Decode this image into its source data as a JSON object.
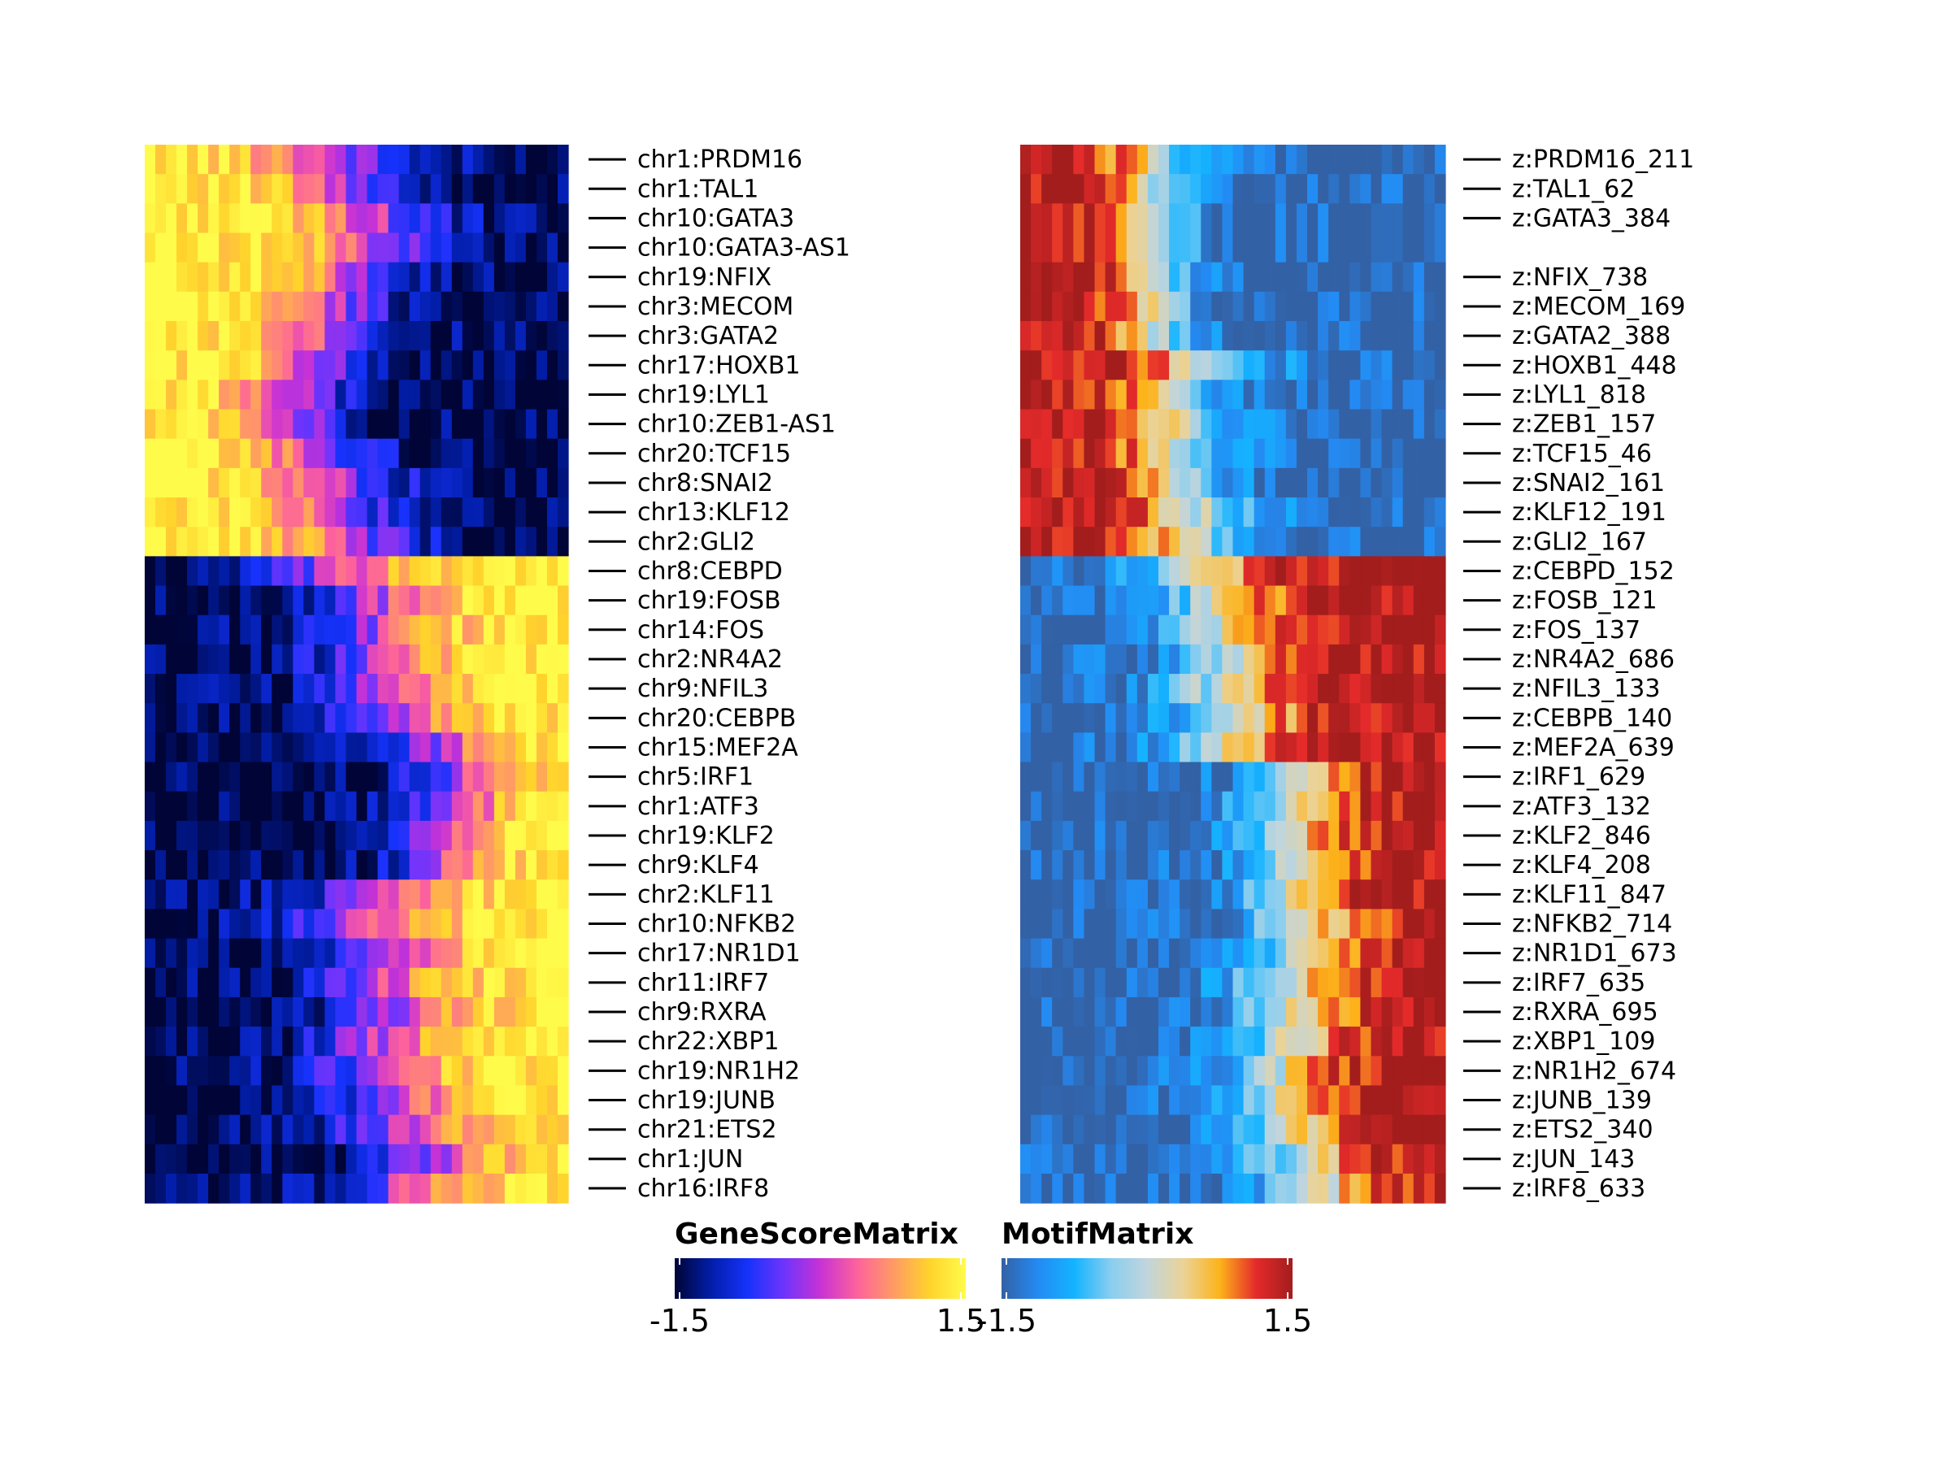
{
  "chart_data": [
    {
      "type": "heatmap",
      "name": "GeneScoreMatrix",
      "legend_title": "GeneScoreMatrix",
      "color_range": [
        -1.5,
        1.5
      ],
      "tick_labels": [
        "-1.5",
        "1.5"
      ],
      "colors": [
        "#000436",
        "#021ea9",
        "#1632fb",
        "#6e34fc",
        "#c732d5",
        "#fd619d",
        "#ff9965",
        "#ffd32b",
        "#fffb4a"
      ],
      "rows": [
        "chr1:PRDM16",
        "chr1:TAL1",
        "chr10:GATA3",
        "chr10:GATA3-AS1",
        "chr19:NFIX",
        "chr3:MECOM",
        "chr3:GATA2",
        "chr17:HOXB1",
        "chr19:LYL1",
        "chr10:ZEB1-AS1",
        "chr20:TCF15",
        "chr8:SNAI2",
        "chr13:KLF12",
        "chr2:GLI2",
        "chr8:CEBPD",
        "chr19:FOSB",
        "chr14:FOS",
        "chr2:NR4A2",
        "chr9:NFIL3",
        "chr20:CEBPB",
        "chr15:MEF2A",
        "chr5:IRF1",
        "chr1:ATF3",
        "chr19:KLF2",
        "chr9:KLF4",
        "chr2:KLF11",
        "chr10:NFKB2",
        "chr17:NR1D1",
        "chr11:IRF7",
        "chr9:RXRA",
        "chr22:XBP1",
        "chr19:NR1H2",
        "chr19:JUNB",
        "chr21:ETS2",
        "chr1:JUN",
        "chr16:IRF8"
      ],
      "n_columns": 40,
      "row_profiles": [
        {
          "center": 0.45,
          "direction": -1,
          "steep": 8
        },
        {
          "center": 0.45,
          "direction": -1,
          "steep": 10
        },
        {
          "center": 0.55,
          "direction": -1,
          "steep": 9
        },
        {
          "center": 0.55,
          "direction": -1,
          "steep": 9
        },
        {
          "center": 0.5,
          "direction": -1,
          "steep": 10
        },
        {
          "center": 0.45,
          "direction": -1,
          "steep": 10
        },
        {
          "center": 0.45,
          "direction": -1,
          "steep": 10
        },
        {
          "center": 0.4,
          "direction": -1,
          "steep": 11
        },
        {
          "center": 0.35,
          "direction": -1,
          "steep": 11
        },
        {
          "center": 0.35,
          "direction": -1,
          "steep": 11
        },
        {
          "center": 0.4,
          "direction": -1,
          "steep": 10
        },
        {
          "center": 0.45,
          "direction": -1,
          "steep": 9
        },
        {
          "center": 0.45,
          "direction": -1,
          "steep": 10
        },
        {
          "center": 0.5,
          "direction": -1,
          "steep": 9
        },
        {
          "center": 0.45,
          "direction": 1,
          "steep": 9
        },
        {
          "center": 0.55,
          "direction": 1,
          "steep": 9
        },
        {
          "center": 0.55,
          "direction": 1,
          "steep": 9
        },
        {
          "center": 0.55,
          "direction": 1,
          "steep": 9
        },
        {
          "center": 0.55,
          "direction": 1,
          "steep": 9
        },
        {
          "center": 0.6,
          "direction": 1,
          "steep": 9
        },
        {
          "center": 0.7,
          "direction": 1,
          "steep": 10
        },
        {
          "center": 0.75,
          "direction": 1,
          "steep": 12
        },
        {
          "center": 0.75,
          "direction": 1,
          "steep": 12
        },
        {
          "center": 0.7,
          "direction": 1,
          "steep": 12
        },
        {
          "center": 0.7,
          "direction": 1,
          "steep": 12
        },
        {
          "center": 0.55,
          "direction": 1,
          "steep": 8
        },
        {
          "center": 0.5,
          "direction": 1,
          "steep": 8
        },
        {
          "center": 0.6,
          "direction": 1,
          "steep": 9
        },
        {
          "center": 0.55,
          "direction": 1,
          "steep": 9
        },
        {
          "center": 0.6,
          "direction": 1,
          "steep": 9
        },
        {
          "center": 0.55,
          "direction": 1,
          "steep": 9
        },
        {
          "center": 0.55,
          "direction": 1,
          "steep": 9
        },
        {
          "center": 0.6,
          "direction": 1,
          "steep": 9
        },
        {
          "center": 0.6,
          "direction": 1,
          "steep": 9
        },
        {
          "center": 0.7,
          "direction": 1,
          "steep": 10
        },
        {
          "center": 0.6,
          "direction": 1,
          "steep": 9
        }
      ]
    },
    {
      "type": "heatmap",
      "name": "MotifMatrix",
      "legend_title": "MotifMatrix",
      "color_range": [
        -1.5,
        1.5
      ],
      "tick_labels": [
        "-1.5",
        "1.5"
      ],
      "colors": [
        "#3361a5",
        "#248af3",
        "#14b3ff",
        "#88ceef",
        "#c1d5dc",
        "#eaD397",
        "#fdb31a",
        "#e42a2a",
        "#a31d1d"
      ],
      "rows": [
        "z:PRDM16_211",
        "z:TAL1_62",
        "z:GATA3_384",
        "z:NFIX_738",
        "z:MECOM_169",
        "z:GATA2_388",
        "z:HOXB1_448",
        "z:LYL1_818",
        "z:ZEB1_157",
        "z:TCF15_46",
        "z:SNAI2_161",
        "z:KLF12_191",
        "z:GLI2_167",
        "z:CEBPD_152",
        "z:FOSB_121",
        "z:FOS_137",
        "z:NR4A2_686",
        "z:NFIL3_133",
        "z:CEBPB_140",
        "z:MEF2A_639",
        "z:IRF1_629",
        "z:ATF3_132",
        "z:KLF2_846",
        "z:KLF4_208",
        "z:KLF11_847",
        "z:NFKB2_714",
        "z:NR1D1_673",
        "z:IRF7_635",
        "z:RXRA_695",
        "z:XBP1_109",
        "z:NR1H2_674",
        "z:JUNB_139",
        "z:ETS2_340",
        "z:JUN_143",
        "z:IRF8_633"
      ],
      "row_slots": [
        0,
        1,
        2,
        4,
        5,
        6,
        7,
        8,
        9,
        10,
        11,
        12,
        13,
        14,
        15,
        16,
        17,
        18,
        19,
        20,
        21,
        22,
        23,
        24,
        25,
        26,
        27,
        28,
        29,
        30,
        31,
        32,
        33,
        34,
        35
      ],
      "n_columns": 40,
      "row_profiles": [
        {
          "center": 0.32,
          "direction": -1,
          "steep": 14
        },
        {
          "center": 0.3,
          "direction": -1,
          "steep": 16
        },
        {
          "center": 0.32,
          "direction": -1,
          "steep": 16
        },
        {
          "center": 0.32,
          "direction": -1,
          "steep": 16
        },
        {
          "center": 0.32,
          "direction": -1,
          "steep": 16
        },
        {
          "center": 0.32,
          "direction": -1,
          "steep": 16
        },
        {
          "center": 0.45,
          "direction": -1,
          "steep": 10
        },
        {
          "center": 0.35,
          "direction": -1,
          "steep": 12
        },
        {
          "center": 0.4,
          "direction": -1,
          "steep": 12
        },
        {
          "center": 0.38,
          "direction": -1,
          "steep": 12
        },
        {
          "center": 0.38,
          "direction": -1,
          "steep": 12
        },
        {
          "center": 0.42,
          "direction": -1,
          "steep": 10
        },
        {
          "center": 0.42,
          "direction": -1,
          "steep": 10
        },
        {
          "center": 0.4,
          "direction": 1,
          "steep": 10
        },
        {
          "center": 0.45,
          "direction": 1,
          "steep": 10
        },
        {
          "center": 0.45,
          "direction": 1,
          "steep": 10
        },
        {
          "center": 0.48,
          "direction": 1,
          "steep": 10
        },
        {
          "center": 0.45,
          "direction": 1,
          "steep": 10
        },
        {
          "center": 0.5,
          "direction": 1,
          "steep": 10
        },
        {
          "center": 0.45,
          "direction": 1,
          "steep": 10
        },
        {
          "center": 0.65,
          "direction": 1,
          "steep": 12
        },
        {
          "center": 0.62,
          "direction": 1,
          "steep": 12
        },
        {
          "center": 0.62,
          "direction": 1,
          "steep": 12
        },
        {
          "center": 0.62,
          "direction": 1,
          "steep": 12
        },
        {
          "center": 0.62,
          "direction": 1,
          "steep": 12
        },
        {
          "center": 0.65,
          "direction": 1,
          "steep": 11
        },
        {
          "center": 0.65,
          "direction": 1,
          "steep": 11
        },
        {
          "center": 0.62,
          "direction": 1,
          "steep": 11
        },
        {
          "center": 0.62,
          "direction": 1,
          "steep": 11
        },
        {
          "center": 0.62,
          "direction": 1,
          "steep": 11
        },
        {
          "center": 0.6,
          "direction": 1,
          "steep": 11
        },
        {
          "center": 0.6,
          "direction": 1,
          "steep": 11
        },
        {
          "center": 0.62,
          "direction": 1,
          "steep": 11
        },
        {
          "center": 0.65,
          "direction": 1,
          "steep": 11
        },
        {
          "center": 0.7,
          "direction": 1,
          "steep": 11
        }
      ]
    }
  ]
}
